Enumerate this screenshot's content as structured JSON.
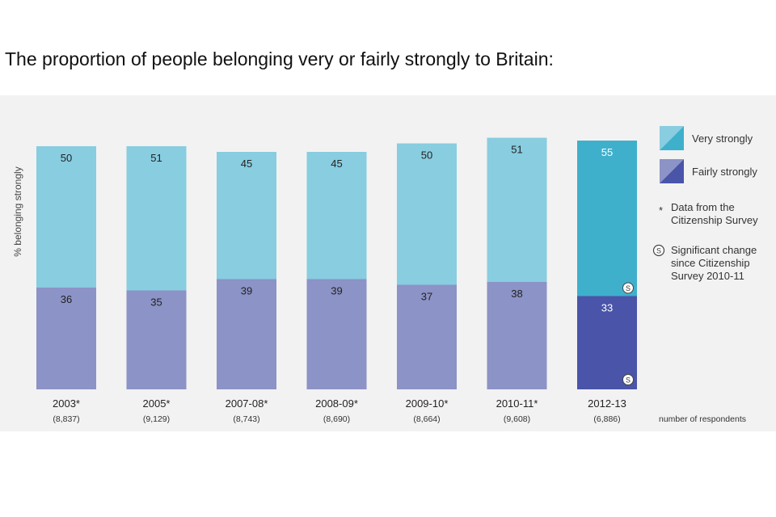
{
  "page": {
    "title": "The proportion of people belonging very or fairly strongly to Britain:"
  },
  "colors": {
    "panel_bg": "#f2f2f2",
    "very_strongly": "#88cde0",
    "fairly_strongly": "#8c93c6",
    "very_strongly_highlight": "#3fb0cc",
    "fairly_strongly_highlight": "#4a54a8"
  },
  "legend": {
    "very_strongly": "Very strongly",
    "fairly_strongly": "Fairly strongly",
    "note_star_symbol": "*",
    "note_star_line1": "Data from the",
    "note_star_line2": "Citizenship Survey",
    "note_sig_symbol": "S",
    "note_sig_line1": "Significant change",
    "note_sig_line2": "since Citizenship",
    "note_sig_line3": "Survey 2010-11",
    "respondents_label": "number of respondents"
  },
  "chart_data": {
    "type": "bar",
    "stacked": true,
    "title": "The proportion of people belonging very or fairly strongly to Britain:",
    "ylabel": "% belonging strongly",
    "ylim": [
      0,
      100
    ],
    "grid": false,
    "legend_position": "right",
    "categories": [
      "2003*",
      "2005*",
      "2007-08*",
      "2008-09*",
      "2009-10*",
      "2010-11*",
      "2012-13"
    ],
    "respondents": [
      "(8,837)",
      "(9,129)",
      "(8,743)",
      "(8,690)",
      "(8,664)",
      "(9,608)",
      "(6,886)"
    ],
    "series": [
      {
        "name": "Fairly strongly",
        "values": [
          36,
          35,
          39,
          39,
          37,
          38,
          33
        ]
      },
      {
        "name": "Very strongly",
        "values": [
          50,
          51,
          45,
          45,
          50,
          51,
          55
        ]
      }
    ],
    "highlight_category": "2012-13",
    "significant_change": {
      "category": "2012-13",
      "series": [
        "Very strongly",
        "Fairly strongly"
      ]
    }
  }
}
